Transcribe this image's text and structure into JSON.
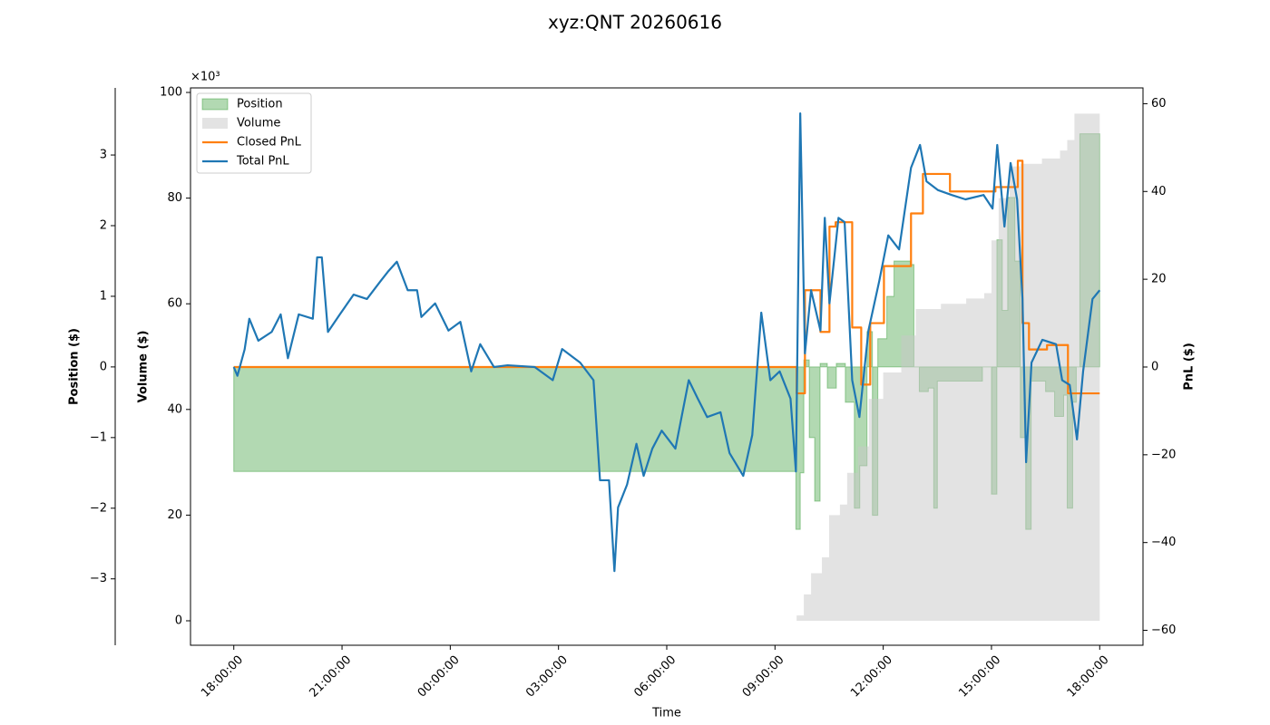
{
  "chart_data": {
    "type": "combo",
    "title": "xyz:QNT 20260616",
    "xlabel": "Time",
    "xlim": [
      -1.2,
      25.2
    ],
    "xticks": [
      {
        "value": 0,
        "label": "18:00:00"
      },
      {
        "value": 3,
        "label": "21:00:00"
      },
      {
        "value": 6,
        "label": "00:00:00"
      },
      {
        "value": 9,
        "label": "03:00:00"
      },
      {
        "value": 12,
        "label": "06:00:00"
      },
      {
        "value": 15,
        "label": "09:00:00"
      },
      {
        "value": 18,
        "label": "12:00:00"
      },
      {
        "value": 21,
        "label": "15:00:00"
      },
      {
        "value": 24,
        "label": "18:00:00"
      }
    ],
    "axes": {
      "position": {
        "label": "Position ($)",
        "color": "green",
        "lim": [
          -3.94,
          3.95
        ],
        "ticks": [
          {
            "value": -3,
            "label": "−3"
          },
          {
            "value": -2,
            "label": "−2"
          },
          {
            "value": -1,
            "label": "−1"
          },
          0,
          1,
          2,
          3
        ]
      },
      "volume": {
        "label": "Volume ($)",
        "color": "gray",
        "offset_label": "×10³",
        "lim": [
          -4630,
          100860
        ],
        "ticks": [
          0,
          {
            "value": 20000,
            "label": "20"
          },
          {
            "value": 40000,
            "label": "40"
          },
          {
            "value": 60000,
            "label": "60"
          },
          {
            "value": 80000,
            "label": "80"
          },
          {
            "value": 100000,
            "label": "100"
          }
        ]
      },
      "pnl": {
        "label": "PnL ($)",
        "color": "black",
        "lim": [
          -63.4,
          63.6
        ],
        "ticks": [
          {
            "value": -60,
            "label": "−60"
          },
          {
            "value": -40,
            "label": "−40"
          },
          {
            "value": -20,
            "label": "−20"
          },
          0,
          20,
          40,
          60
        ]
      }
    },
    "legend": "upper left",
    "series": [
      {
        "name": "Position",
        "kind": "fill-step",
        "axis": "position",
        "color": "green",
        "x": [
          0,
          15.58,
          15.7,
          15.8,
          15.95,
          16.1,
          16.25,
          16.45,
          16.7,
          16.95,
          17.2,
          17.35,
          17.55,
          17.7,
          17.85,
          18.1,
          18.3,
          18.75,
          18.85,
          19.0,
          19.25,
          19.4,
          19.5,
          20.75,
          21.0,
          21.15,
          21.3,
          21.45,
          21.65,
          21.8,
          21.95,
          22.1,
          22.5,
          22.75,
          23.0,
          23.1,
          23.25,
          23.35,
          23.45,
          24
        ],
        "values": [
          -1.48,
          -2.3,
          -1.5,
          0.1,
          -1.0,
          -1.9,
          0.05,
          -0.3,
          0.05,
          -0.5,
          -2.0,
          -1.4,
          0.5,
          -2.1,
          0.4,
          1.0,
          1.5,
          1.45,
          0,
          -0.35,
          -0.3,
          -2.0,
          -0.2,
          0,
          -1.8,
          1.8,
          0.8,
          2.4,
          1.5,
          -1.0,
          -2.3,
          -0.2,
          -0.35,
          -0.7,
          -0.4,
          -2.0,
          -0.5,
          0,
          3.3,
          3.3
        ]
      },
      {
        "name": "Volume",
        "kind": "fill-step",
        "axis": "volume",
        "color": "#c8c8c8",
        "x": [
          0,
          15.5,
          15.6,
          15.8,
          16,
          16.3,
          16.5,
          16.8,
          17.0,
          17.3,
          17.6,
          18.0,
          18.5,
          18.9,
          19.6,
          20.3,
          20.8,
          21.0,
          21.2,
          21.5,
          21.8,
          22.4,
          22.9,
          23.1,
          23.3,
          24
        ],
        "values": [
          0,
          0,
          1000,
          5000,
          9000,
          12000,
          20000,
          22000,
          28000,
          33000,
          42000,
          47000,
          54000,
          59000,
          60000,
          61000,
          62000,
          72000,
          80000,
          86000,
          86500,
          87500,
          89000,
          91000,
          96000,
          96000
        ]
      },
      {
        "name": "Closed PnL",
        "kind": "line-step",
        "axis": "pnl",
        "color": "#ff7f0e",
        "x": [
          0,
          15.6,
          15.83,
          16.26,
          16.51,
          16.68,
          17.14,
          17.39,
          17.64,
          18.02,
          18.77,
          19.1,
          19.85,
          21.11,
          21.73,
          21.86,
          22.04,
          22.54,
          23.12,
          24
        ],
        "values": [
          0,
          -6,
          17.5,
          8,
          32,
          33,
          9,
          -4,
          10,
          23,
          35,
          44,
          40,
          41,
          47,
          10,
          4,
          5,
          -6,
          -6
        ]
      },
      {
        "name": "Total PnL",
        "kind": "line",
        "axis": "pnl",
        "color": "#1f77b4",
        "x": [
          0,
          0.1,
          0.3,
          0.43,
          0.68,
          1.05,
          1.3,
          1.5,
          1.8,
          2.19,
          2.31,
          2.44,
          2.61,
          2.94,
          3.32,
          3.69,
          4.07,
          4.27,
          4.52,
          4.82,
          5.08,
          5.2,
          5.58,
          5.95,
          6.28,
          6.58,
          6.83,
          7.21,
          7.59,
          8.34,
          8.84,
          9.1,
          9.6,
          9.97,
          10.15,
          10.4,
          10.55,
          10.65,
          10.9,
          11.16,
          11.36,
          11.6,
          11.86,
          12.24,
          12.61,
          12.86,
          13.12,
          13.49,
          13.74,
          14.12,
          14.37,
          14.62,
          14.87,
          15.13,
          15.43,
          15.58,
          15.7,
          15.83,
          16,
          16.26,
          16.38,
          16.51,
          16.76,
          16.93,
          17.14,
          17.34,
          17.59,
          17.89,
          18.14,
          18.44,
          18.77,
          19.02,
          19.2,
          19.52,
          19.9,
          20.28,
          20.78,
          21.03,
          21.16,
          21.36,
          21.53,
          21.71,
          21.86,
          21.96,
          22.11,
          22.41,
          22.79,
          22.96,
          23.17,
          23.37,
          23.54,
          23.8,
          24
        ],
        "values": [
          0,
          -2,
          4,
          11,
          6,
          8,
          12,
          2,
          12,
          11,
          25,
          25,
          8,
          12,
          16.5,
          15.5,
          19.6,
          21.7,
          24,
          17.5,
          17.5,
          11.4,
          14.5,
          8.3,
          10.3,
          -1,
          5.2,
          0,
          0.4,
          0,
          -3,
          4.1,
          1,
          -3,
          -25.8,
          -25.8,
          -46.5,
          -32,
          -26.8,
          -17.5,
          -24.8,
          -18.6,
          -14.5,
          -18.6,
          -3,
          -7.2,
          -11.4,
          -10.3,
          -19.6,
          -24.8,
          -15.5,
          12.4,
          -3,
          -1,
          -7.2,
          -23.8,
          57.8,
          3.1,
          17.5,
          8.3,
          34,
          14.5,
          34,
          33,
          -3,
          -11.4,
          8.3,
          19.6,
          30,
          26.8,
          45.4,
          50.6,
          42.3,
          40.3,
          39.2,
          38.2,
          39.2,
          36.1,
          50.6,
          32,
          46.5,
          38.2,
          15.5,
          -21.7,
          1,
          6.2,
          5.2,
          -3,
          -4.1,
          -16.5,
          -1,
          15.5,
          17.5
        ]
      }
    ]
  }
}
